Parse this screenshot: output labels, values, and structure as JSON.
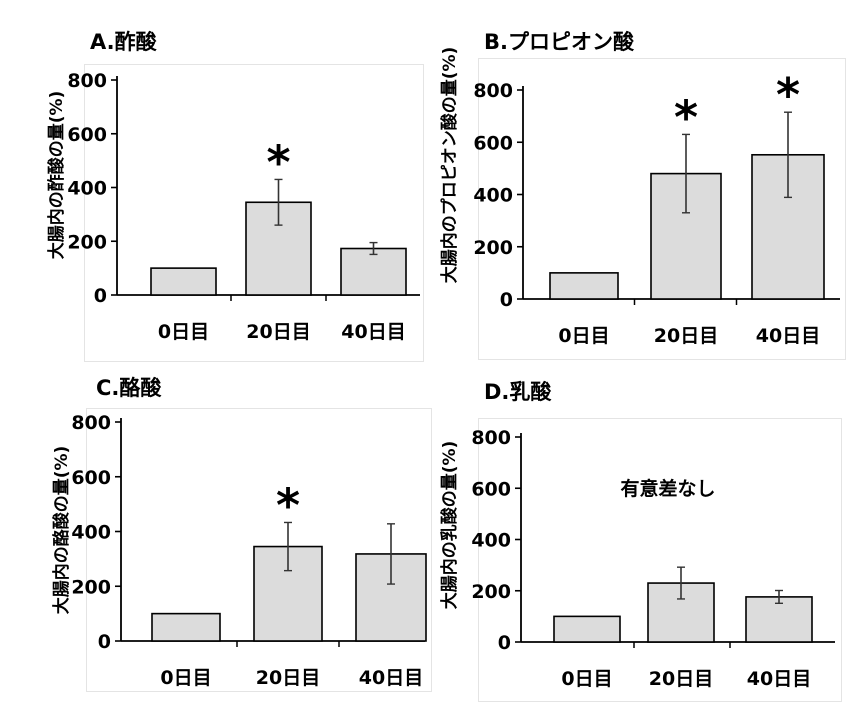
{
  "chart_data": [
    {
      "type": "bar",
      "title": "A.酢酸",
      "ylabel": "大腸内の酢酸の量(%)",
      "categories": [
        "0日目",
        "20日目",
        "40日目"
      ],
      "values": [
        100,
        345,
        173
      ],
      "error_bars": [
        0,
        85,
        22
      ],
      "yticks": [
        "0",
        "200",
        "400",
        "600",
        "800"
      ],
      "ylim": [
        0,
        800
      ],
      "markers": [
        "",
        "*",
        ""
      ],
      "annotation": ""
    },
    {
      "type": "bar",
      "title": "B.プロピオン酸",
      "ylabel": "大腸内のプロピオン酸の量(%)",
      "categories": [
        "0日目",
        "20日目",
        "40日目"
      ],
      "values": [
        100,
        480,
        552
      ],
      "error_bars": [
        0,
        150,
        163
      ],
      "yticks": [
        "0",
        "200",
        "400",
        "600",
        "800"
      ],
      "ylim": [
        0,
        800
      ],
      "markers": [
        "",
        "*",
        "*"
      ],
      "annotation": ""
    },
    {
      "type": "bar",
      "title": "C.酪酸",
      "ylabel": "大腸内の酪酸の量(%)",
      "categories": [
        "0日目",
        "20日目",
        "40日目"
      ],
      "values": [
        100,
        345,
        318
      ],
      "error_bars": [
        0,
        88,
        110
      ],
      "yticks": [
        "0",
        "200",
        "400",
        "600",
        "800"
      ],
      "ylim": [
        0,
        800
      ],
      "markers": [
        "",
        "*",
        ""
      ],
      "annotation": ""
    },
    {
      "type": "bar",
      "title": "D.乳酸",
      "ylabel": "大腸内の乳酸の量(%)",
      "categories": [
        "0日目",
        "20日目",
        "40日目"
      ],
      "values": [
        100,
        230,
        176
      ],
      "error_bars": [
        0,
        62,
        25
      ],
      "yticks": [
        "0",
        "200",
        "400",
        "600",
        "800"
      ],
      "ylim": [
        0,
        800
      ],
      "markers": [
        "",
        "",
        ""
      ],
      "annotation": "有意差なし"
    }
  ],
  "colors": {
    "bar_fill": "#dcdcdc",
    "bar_stroke": "#000000",
    "axis": "#000000",
    "error_bar": "#333333"
  }
}
